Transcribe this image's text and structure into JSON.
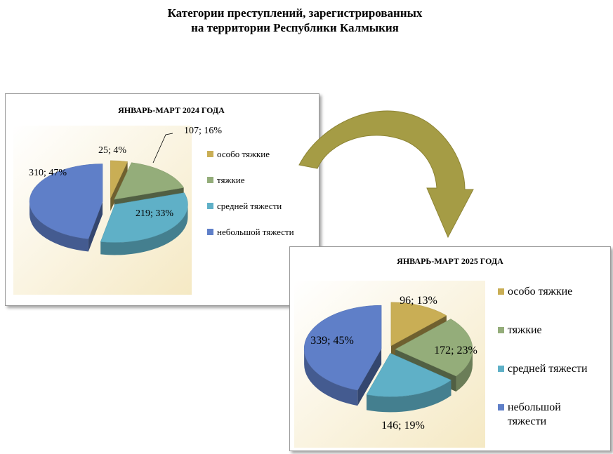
{
  "page": {
    "title_line1": "Категории преступлений, зарегистрированных",
    "title_line2": "на территории  Республики Калмыкия"
  },
  "colors": {
    "gold": "#C9AE55",
    "green": "#94AD7A",
    "teal": "#5FB0C7",
    "blue": "#5F7FC8",
    "arrow": "#A59C45",
    "plot_bg": "#F5E9C4"
  },
  "chart_data": [
    {
      "type": "pie",
      "title": "ЯНВАРЬ-МАРТ 2024 ГОДА",
      "categories": [
        "особо тяжкие",
        "тяжкие",
        "средней тяжести",
        "небольшой тяжести"
      ],
      "values": [
        25,
        107,
        219,
        310
      ],
      "percents": [
        4,
        16,
        33,
        47
      ],
      "data_labels": [
        "25; 4%",
        "107; 16%",
        "219; 33%",
        "310; 47%"
      ],
      "legend": [
        "особо тяжкие",
        "тяжкие",
        "средней тяжести",
        "небольшой тяжести"
      ],
      "legend_position": "right",
      "style": "3d exploded"
    },
    {
      "type": "pie",
      "title": "ЯНВАРЬ-МАРТ 2025 ГОДА",
      "categories": [
        "особо тяжкие",
        "тяжкие",
        "средней тяжести",
        "небольшой тяжести"
      ],
      "values": [
        96,
        172,
        146,
        339
      ],
      "percents": [
        13,
        23,
        19,
        45
      ],
      "data_labels": [
        "96; 13%",
        "172; 23%",
        "146; 19%",
        "339; 45%"
      ],
      "legend": [
        "особо тяжкие",
        "тяжкие",
        "средней тяжести",
        "небольшой тяжести"
      ],
      "legend_position": "right",
      "style": "3d exploded"
    }
  ]
}
